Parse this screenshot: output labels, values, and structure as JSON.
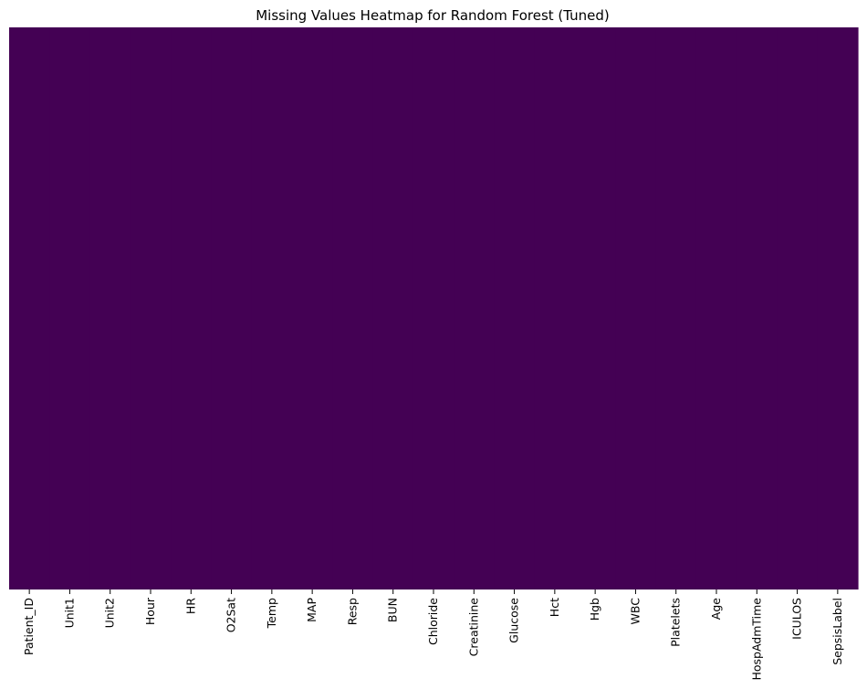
{
  "chart_data": {
    "type": "heatmap",
    "title": "Missing Values Heatmap for Random Forest (Tuned)",
    "xlabel": "",
    "ylabel": "",
    "columns": [
      "Patient_ID",
      "Unit1",
      "Unit2",
      "Hour",
      "HR",
      "O2Sat",
      "Temp",
      "MAP",
      "Resp",
      "BUN",
      "Chloride",
      "Creatinine",
      "Glucose",
      "Hct",
      "Hgb",
      "WBC",
      "Platelets",
      "Age",
      "HospAdmTime",
      "ICULOS",
      "SepsisLabel"
    ],
    "missing": [
      false,
      false,
      false,
      false,
      false,
      false,
      false,
      false,
      false,
      false,
      false,
      false,
      false,
      false,
      false,
      false,
      false,
      false,
      false,
      false,
      false
    ],
    "colormap": "viridis",
    "colors": {
      "present": "#440154",
      "missing": "#fde725"
    },
    "colorbar": false,
    "y_tick_labels": false,
    "grid": false
  }
}
